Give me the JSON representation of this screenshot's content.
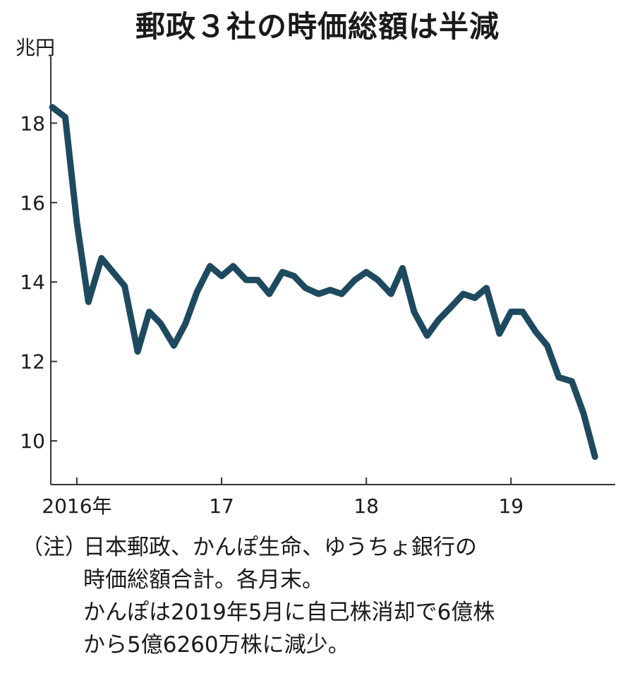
{
  "chart_data": {
    "type": "line",
    "title": "郵政３社の時価総額は半減",
    "ylabel": "兆円",
    "ylim": [
      8.9,
      19.5
    ],
    "xlim": [
      2015.82,
      2019.72
    ],
    "yticks": [
      10,
      12,
      14,
      16,
      18
    ],
    "xticks": [
      {
        "value": 2016,
        "label": "2016年"
      },
      {
        "value": 2017,
        "label": "17"
      },
      {
        "value": 2018,
        "label": "18"
      },
      {
        "value": 2019,
        "label": "19"
      }
    ],
    "grid": false,
    "series": [
      {
        "color": "#1e4a5f",
        "x": [
          2015.83,
          2015.92,
          2016.0,
          2016.08,
          2016.17,
          2016.25,
          2016.33,
          2016.42,
          2016.5,
          2016.58,
          2016.67,
          2016.75,
          2016.83,
          2016.92,
          2017.0,
          2017.08,
          2017.17,
          2017.25,
          2017.33,
          2017.42,
          2017.5,
          2017.58,
          2017.67,
          2017.75,
          2017.83,
          2017.92,
          2018.0,
          2018.08,
          2018.17,
          2018.25,
          2018.33,
          2018.42,
          2018.5,
          2018.58,
          2018.67,
          2018.75,
          2018.83,
          2018.92,
          2019.0,
          2019.08,
          2019.17,
          2019.25,
          2019.33,
          2019.42,
          2019.5,
          2019.58
        ],
        "values": [
          18.4,
          18.15,
          15.5,
          13.5,
          14.6,
          14.25,
          13.9,
          12.25,
          13.25,
          12.95,
          12.4,
          12.95,
          13.75,
          14.4,
          14.15,
          14.4,
          14.05,
          14.05,
          13.7,
          14.25,
          14.15,
          13.85,
          13.7,
          13.8,
          13.7,
          14.05,
          14.25,
          14.05,
          13.7,
          14.35,
          13.25,
          12.65,
          13.05,
          13.35,
          13.7,
          13.6,
          13.85,
          12.7,
          13.25,
          13.25,
          12.75,
          12.4,
          11.6,
          11.5,
          10.7,
          9.6
        ]
      }
    ]
  },
  "note": {
    "lead": "（注）",
    "lines": [
      "日本郵政、かんぽ生命、ゆうちょ銀行の",
      "時価総額合計。各月末。",
      "かんぽは2019年5月に自己株消却で6億株",
      "から5億6260万株に減少。"
    ]
  }
}
